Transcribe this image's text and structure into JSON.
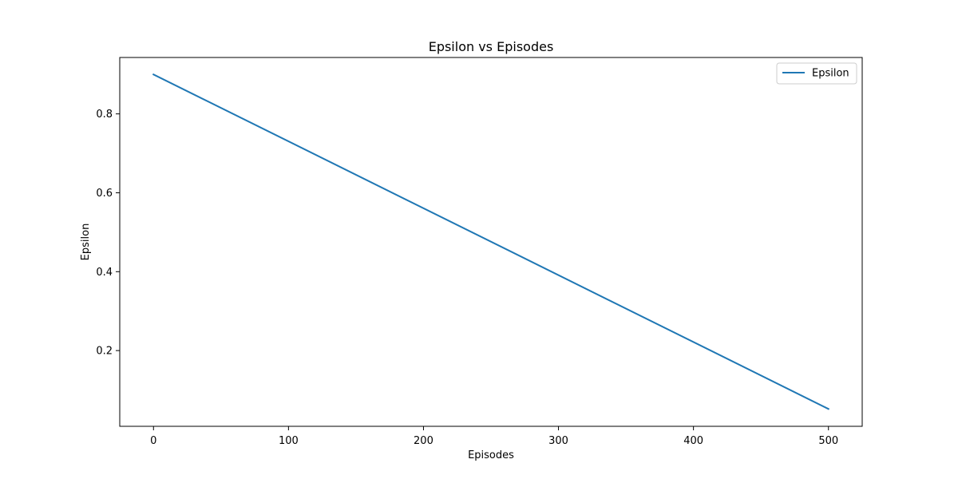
{
  "chart_data": {
    "type": "line",
    "title": "Epsilon vs Episodes",
    "xlabel": "Episodes",
    "ylabel": "Epsilon",
    "xlim": [
      -25,
      525
    ],
    "ylim": [
      0.008,
      0.943
    ],
    "xticks": [
      0,
      100,
      200,
      300,
      400,
      500
    ],
    "yticks": [
      0.2,
      0.4,
      0.6,
      0.8
    ],
    "ytick_labels": [
      "0.2",
      "0.4",
      "0.6",
      "0.8"
    ],
    "grid": false,
    "legend_position": "top-right",
    "series": [
      {
        "name": "Epsilon",
        "color": "#1f77b4",
        "x": [
          0,
          500
        ],
        "y": [
          0.9,
          0.052
        ]
      }
    ]
  }
}
